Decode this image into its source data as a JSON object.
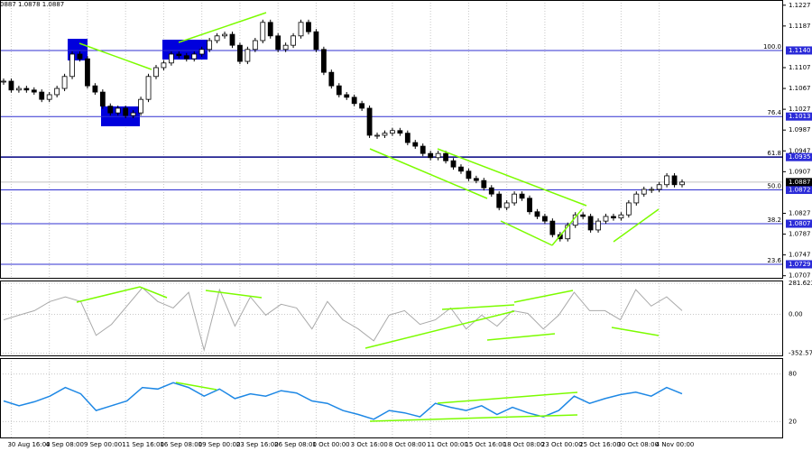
{
  "chart_data": {
    "type": "candlestick",
    "header": "0887 1.0878 1.0887",
    "categories": [
      null,
      "30 Aug 16:00",
      null,
      null,
      null,
      null,
      "4 Sep 08:00",
      null,
      null,
      null,
      null,
      "9 Sep 00:00",
      null,
      null,
      null,
      null,
      "11 Sep 16:00",
      null,
      null,
      null,
      null,
      "16 Sep 08:00",
      null,
      null,
      null,
      null,
      "19 Sep 00:00",
      null,
      null,
      null,
      null,
      "23 Sep 16:00",
      null,
      null,
      null,
      null,
      "26 Sep 08:00",
      null,
      null,
      null,
      null,
      "1 Oct 00:00",
      null,
      null,
      null,
      null,
      "3 Oct 16:00",
      null,
      null,
      null,
      null,
      "8 Oct 08:00",
      null,
      null,
      null,
      null,
      "11 Oct 00:00",
      null,
      null,
      null,
      null,
      "15 Oct 16:00",
      null,
      null,
      null,
      null,
      "18 Oct 08:00",
      null,
      null,
      null,
      null,
      "23 Oct 00:00",
      null,
      null,
      null,
      null,
      "25 Oct 16:00",
      null,
      null,
      null,
      null,
      "30 Oct 08:00",
      null,
      null,
      null,
      null,
      "4 Nov 00:00",
      null,
      null,
      null
    ],
    "values": [
      1.1081,
      1.1064,
      1.1067,
      1.1064,
      1.106,
      1.1046,
      1.1055,
      1.1067,
      1.109,
      1.1133,
      1.1124,
      1.1072,
      1.106,
      1.1033,
      1.102,
      1.1029,
      1.1015,
      1.102,
      1.1046,
      1.109,
      1.1107,
      1.1116,
      1.1133,
      1.113,
      1.1124,
      1.1133,
      1.1142,
      1.1159,
      1.1168,
      1.1171,
      1.115,
      1.1119,
      1.1142,
      1.1159,
      1.1194,
      1.1168,
      1.1142,
      1.115,
      1.1168,
      1.1194,
      1.1176,
      1.1142,
      1.1098,
      1.1072,
      1.1055,
      1.105,
      1.1038,
      1.1029,
      1.0977,
      1.0977,
      1.0981,
      1.0986,
      1.0981,
      1.0963,
      1.0956,
      1.0942,
      1.0934,
      1.0942,
      1.0928,
      1.0916,
      1.0908,
      1.0894,
      1.089,
      1.0876,
      1.0864,
      1.0838,
      1.0847,
      1.0864,
      1.0856,
      1.083,
      1.0821,
      1.0812,
      1.0786,
      1.0778,
      1.0804,
      1.0824,
      1.0821,
      1.0795,
      1.0812,
      1.0821,
      1.0818,
      1.0824,
      1.0847,
      1.0864,
      1.0873,
      1.0873,
      1.0882,
      1.0899,
      1.0882,
      1.0887
    ],
    "ylim": [
      1.0703,
      1.1237
    ],
    "yticks": [
      {
        "value": 1.1227,
        "label": "1.1227"
      },
      {
        "value": 1.1187,
        "label": "1.1187"
      },
      {
        "value": 1.1107,
        "label": "1.1107"
      },
      {
        "value": 1.1067,
        "label": "1.1067"
      },
      {
        "value": 1.1027,
        "label": "1.1027"
      },
      {
        "value": 1.0987,
        "label": "1.0987"
      },
      {
        "value": 1.0947,
        "label": "1.0947"
      },
      {
        "value": 1.0907,
        "label": "1.0907"
      },
      {
        "value": 1.0827,
        "label": "1.0827"
      },
      {
        "value": 1.0787,
        "label": "1.0787"
      },
      {
        "value": 1.0747,
        "label": "1.0747"
      },
      {
        "value": 1.0707,
        "label": "1.0707"
      }
    ],
    "levels": [
      {
        "name": "100.0",
        "value": 1.114,
        "label": "1.1140"
      },
      {
        "name": "76.4",
        "value": 1.1013,
        "label": "1.1013"
      },
      {
        "name": "61.8",
        "value": 1.0935,
        "label": "1.0935"
      },
      {
        "name": "50.0",
        "value": 1.0872,
        "label": "1.0872"
      },
      {
        "name": "38.2",
        "value": 1.0807,
        "label": "1.0807"
      },
      {
        "name": "23.6",
        "value": 1.0729,
        "label": "1.0729"
      }
    ],
    "last": {
      "value": 1.0887,
      "label": "1.0887"
    },
    "grid": true,
    "indicators": [
      {
        "type": "line",
        "color": "#a9a9a9",
        "values": [
          -50,
          -8,
          33,
          116,
          158,
          116,
          -191,
          -91,
          75,
          241,
          116,
          58,
          199,
          -324,
          224,
          -108,
          158,
          -8,
          91,
          58,
          -133,
          116,
          -50,
          -133,
          -241,
          -8,
          33,
          -91,
          -50,
          58,
          -133,
          -8,
          -108,
          33,
          8,
          -133,
          -8,
          199,
          33,
          33,
          -50,
          224,
          75,
          158,
          33
        ],
        "ylim": [
          -372.8,
          306.5
        ],
        "yticks": [
          281.6237,
          {
            "value": 0,
            "label": "0.00"
          },
          {
            "value": -352.57,
            "label": "-352.570"
          }
        ]
      },
      {
        "type": "line",
        "color": "#1e88e5",
        "values": [
          46,
          40,
          45,
          52,
          63,
          55,
          34,
          40,
          46,
          63,
          61,
          69,
          63,
          52,
          61,
          49,
          55,
          52,
          59,
          56,
          46,
          43,
          34,
          29,
          23,
          34,
          31,
          26,
          43,
          38,
          34,
          40,
          29,
          38,
          31,
          26,
          34,
          52,
          43,
          49,
          54,
          57,
          52,
          63,
          55
        ],
        "ylim": [
          0,
          100
        ],
        "yticks": [
          80,
          20
        ]
      }
    ]
  }
}
